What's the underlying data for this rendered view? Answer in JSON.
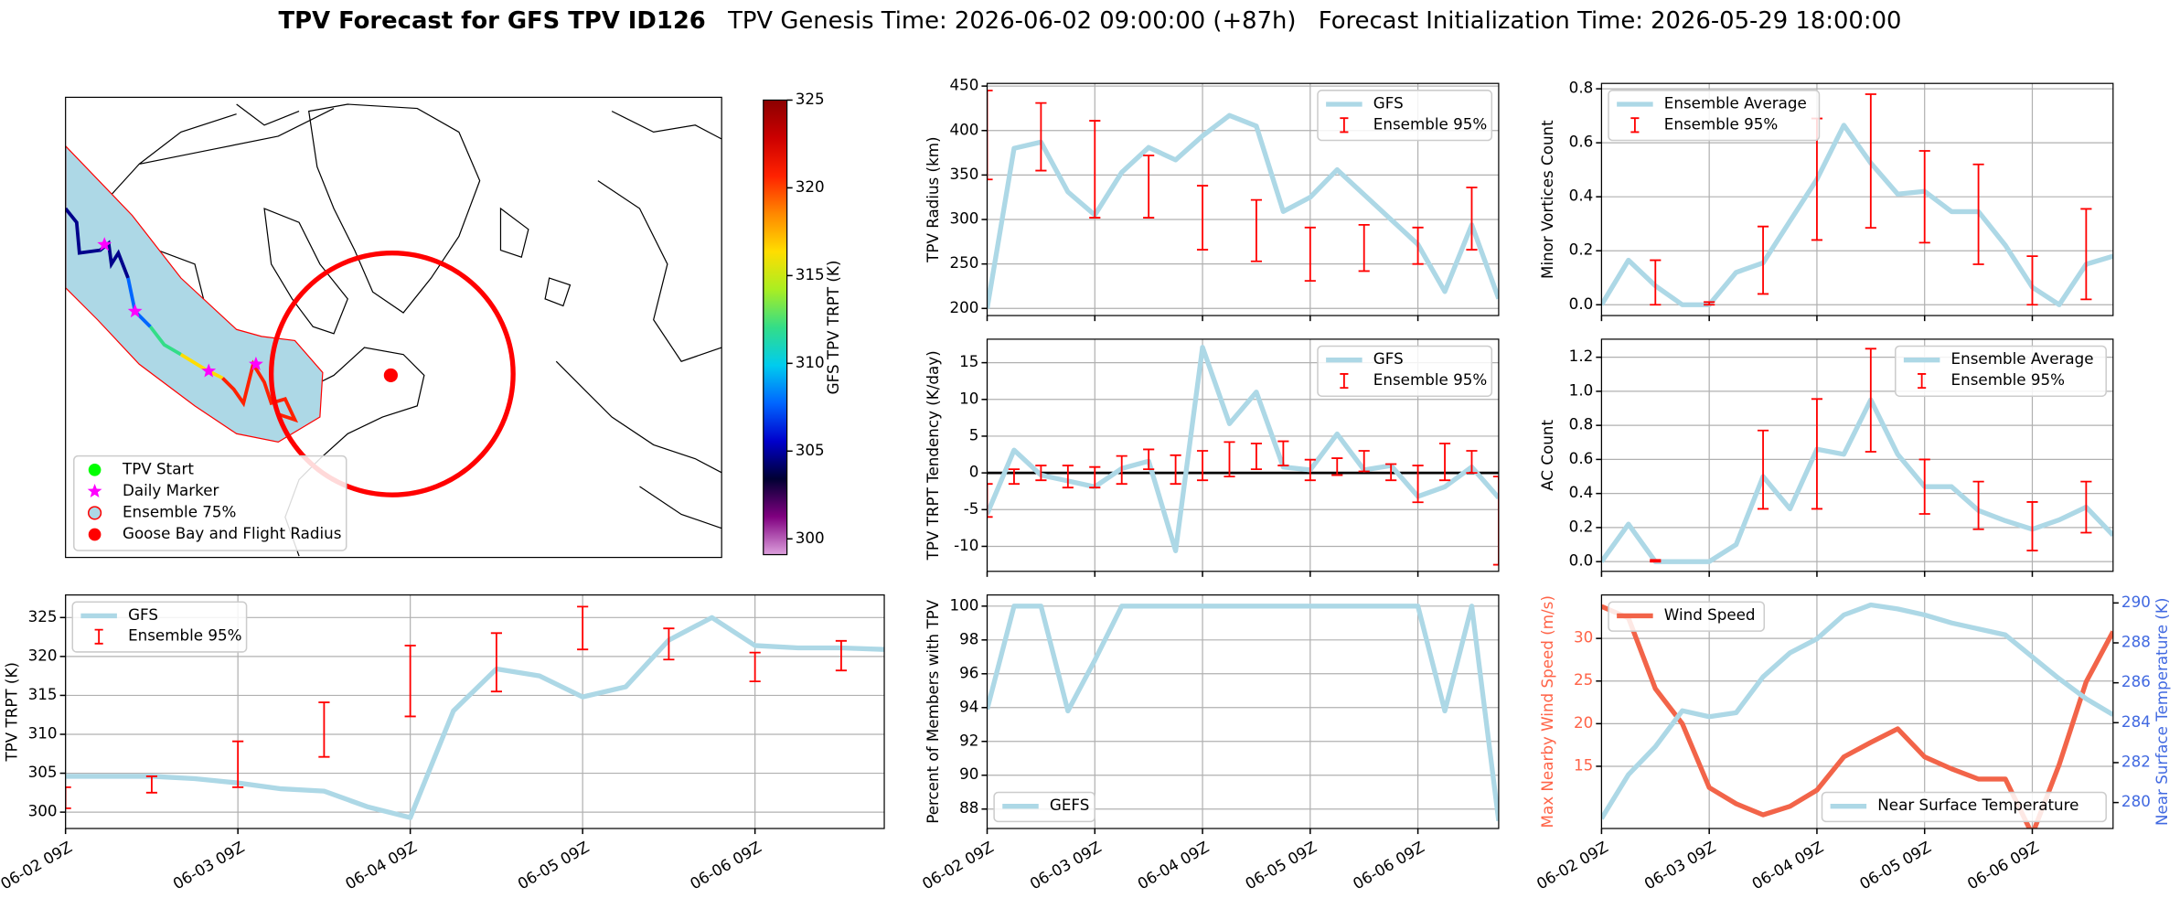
{
  "suptitle": [
    "TPV Forecast for GFS TPV ID126",
    "TPV Genesis Time: 2026-06-02 09:00:00 (+87h)",
    "Forecast Initialization Time: 2026-05-29 18:00:00"
  ],
  "chart_data": [
    {
      "type": "map",
      "legend": {
        "corner": "lower left",
        "entries": [
          {
            "label": "TPV Start",
            "color": "#00ff00",
            "marker": "circle"
          },
          {
            "label": "Daily Marker",
            "color": "#ff00ff",
            "marker": "star"
          },
          {
            "label": "Ensemble 75%",
            "color": "#add8e6",
            "edgecolor": "#ff0000",
            "marker": "circle"
          },
          {
            "label": "Goose Bay and Flight Radius",
            "color": "#ff0000",
            "marker": "circle"
          }
        ]
      },
      "colorbar": {
        "label": "GFS TPV TRPT (K)",
        "lim": [
          299.1,
          325
        ],
        "ticks": [
          300,
          305,
          310,
          315,
          320,
          325
        ],
        "colormap": [
          "#dda0dd",
          "#800080",
          "#000033",
          "#0000cc",
          "#0066ff",
          "#00ccee",
          "#33dd88",
          "#aaee22",
          "#ffdd00",
          "#ff8800",
          "#ff2200",
          "#cc0000",
          "#8b0000"
        ]
      }
    },
    {
      "type": "line",
      "ylabel": "TPV TRPT (K)",
      "x": [
        "06-02 09Z",
        "06-02 15Z",
        "06-02 21Z",
        "06-03 03Z",
        "06-03 09Z",
        "06-03 15Z",
        "06-03 21Z",
        "06-04 03Z",
        "06-04 09Z",
        "06-04 15Z",
        "06-04 21Z",
        "06-05 03Z",
        "06-05 09Z",
        "06-05 15Z",
        "06-05 21Z",
        "06-06 03Z",
        "06-06 09Z",
        "06-06 15Z",
        "06-06 21Z",
        "06-07 03Z"
      ],
      "series": [
        {
          "name": "GFS",
          "color": "#add8e6",
          "values": [
            304.6,
            304.6,
            304.6,
            304.3,
            303.75,
            303.0,
            302.7,
            300.7,
            299.3,
            313.0,
            318.4,
            317.5,
            314.8,
            316.1,
            322.1,
            325.0,
            321.4,
            321.1,
            321.1,
            320.9
          ]
        }
      ],
      "errorbars": {
        "name": "Ensemble 95%",
        "color": "#ff0000",
        "lower": [
          300.5,
          null,
          302.5,
          null,
          303.2,
          null,
          307.1,
          null,
          312.3,
          null,
          315.5,
          null,
          320.9,
          null,
          319.6,
          null,
          316.8,
          null,
          318.2,
          null
        ],
        "upper": [
          303.2,
          null,
          304.6,
          null,
          309.1,
          null,
          314.1,
          null,
          321.4,
          null,
          323.0,
          null,
          326.4,
          null,
          323.6,
          null,
          320.5,
          null,
          322.0,
          null
        ]
      },
      "xlim": [
        "06-02 09Z",
        "06-07 03Z"
      ],
      "xticks": [
        "06-02 09Z",
        "06-03 09Z",
        "06-04 09Z",
        "06-05 09Z",
        "06-06 09Z"
      ],
      "ylim": [
        297.9,
        327.9
      ],
      "yticks": [
        300,
        305,
        310,
        315,
        320,
        325
      ],
      "grid": true,
      "legend": "upper left"
    },
    {
      "type": "line",
      "ylabel": "TPV Radius (km)",
      "x": [
        "06-02 09Z",
        "06-02 15Z",
        "06-02 21Z",
        "06-03 03Z",
        "06-03 09Z",
        "06-03 15Z",
        "06-03 21Z",
        "06-04 03Z",
        "06-04 09Z",
        "06-04 15Z",
        "06-04 21Z",
        "06-05 03Z",
        "06-05 09Z",
        "06-05 15Z",
        "06-05 21Z",
        "06-06 03Z",
        "06-06 09Z",
        "06-06 15Z",
        "06-06 21Z",
        "06-07 03Z"
      ],
      "series": [
        {
          "name": "GFS",
          "color": "#add8e6",
          "values": [
            200,
            380,
            387,
            331,
            305,
            353,
            381,
            367,
            394,
            417,
            405,
            309,
            325,
            356,
            328,
            300,
            272,
            219,
            294,
            211
          ]
        }
      ],
      "errorbars": {
        "name": "Ensemble 95%",
        "color": "#ff0000",
        "lower": [
          345,
          null,
          355,
          null,
          302,
          null,
          302,
          null,
          266,
          null,
          253,
          null,
          231,
          null,
          242,
          null,
          250,
          null,
          266,
          null
        ],
        "upper": [
          445,
          null,
          431,
          null,
          411,
          null,
          372,
          null,
          338,
          null,
          322,
          null,
          291,
          null,
          294,
          null,
          291,
          null,
          336,
          null
        ]
      },
      "ylim": [
        192,
        453
      ],
      "yticks": [
        200,
        250,
        300,
        350,
        400,
        450
      ],
      "grid": true,
      "legend": "upper right"
    },
    {
      "type": "line",
      "ylabel": "TPV TRPT Tendency (K/day)",
      "x": [
        "06-02 09Z",
        "06-02 15Z",
        "06-02 21Z",
        "06-03 03Z",
        "06-03 09Z",
        "06-03 15Z",
        "06-03 21Z",
        "06-04 03Z",
        "06-04 09Z",
        "06-04 15Z",
        "06-04 21Z",
        "06-05 03Z",
        "06-05 09Z",
        "06-05 15Z",
        "06-05 21Z",
        "06-06 03Z",
        "06-06 09Z",
        "06-06 15Z",
        "06-06 21Z",
        "06-07 03Z"
      ],
      "series": [
        {
          "name": "GFS",
          "color": "#add8e6",
          "values": [
            -5.6,
            3.1,
            -0.3,
            -1.1,
            -1.9,
            0.6,
            1.6,
            -10.6,
            17.1,
            6.7,
            11.0,
            0.8,
            0.4,
            5.3,
            0.4,
            1.0,
            -3.2,
            -1.9,
            0.8,
            -3.4
          ]
        }
      ],
      "errorbars": {
        "name": "Ensemble 95%",
        "color": "#ff0000",
        "lower": [
          -6,
          -1.5,
          -1,
          -2,
          -2,
          -1.5,
          0.5,
          -1.5,
          -1,
          -0.5,
          0.5,
          1,
          -1,
          -0.3,
          0.2,
          -1,
          -4,
          -1,
          0,
          -12.5
        ],
        "upper": [
          -1.5,
          0.5,
          1,
          1,
          0.8,
          2.3,
          3.2,
          2.4,
          3,
          4.2,
          4,
          4.3,
          1.8,
          2,
          3,
          1.2,
          1,
          4,
          3,
          -0.5
        ]
      },
      "reference_line": {
        "value": 0,
        "color": "#000000"
      },
      "ylim": [
        -13.4,
        18.2
      ],
      "yticks": [
        -10,
        -5,
        0,
        5,
        10,
        15
      ],
      "grid": true,
      "legend": "upper right"
    },
    {
      "type": "line",
      "ylabel": "Percent of Members with TPV",
      "x": [
        "06-02 09Z",
        "06-02 15Z",
        "06-02 21Z",
        "06-03 03Z",
        "06-03 09Z",
        "06-03 15Z",
        "06-03 21Z",
        "06-04 03Z",
        "06-04 09Z",
        "06-04 15Z",
        "06-04 21Z",
        "06-05 03Z",
        "06-05 09Z",
        "06-05 15Z",
        "06-05 21Z",
        "06-06 03Z",
        "06-06 09Z",
        "06-06 15Z",
        "06-06 21Z",
        "06-07 03Z"
      ],
      "series": [
        {
          "name": "GEFS",
          "color": "#add8e6",
          "values": [
            93.9,
            100,
            100,
            93.8,
            96.8,
            100,
            100,
            100,
            100,
            100,
            100,
            100,
            100,
            100,
            100,
            100,
            100,
            93.8,
            100,
            87.3
          ]
        }
      ],
      "xlim": [
        "06-02 09Z",
        "06-07 03Z"
      ],
      "xticks": [
        "06-02 09Z",
        "06-03 09Z",
        "06-04 09Z",
        "06-05 09Z",
        "06-06 09Z"
      ],
      "ylim": [
        86.85,
        100.66
      ],
      "yticks": [
        88,
        90,
        92,
        94,
        96,
        98,
        100
      ],
      "grid": true,
      "legend": "lower left"
    },
    {
      "type": "line",
      "ylabel": "Minor Vortices Count",
      "x": [
        "06-02 09Z",
        "06-02 15Z",
        "06-02 21Z",
        "06-03 03Z",
        "06-03 09Z",
        "06-03 15Z",
        "06-03 21Z",
        "06-04 03Z",
        "06-04 09Z",
        "06-04 15Z",
        "06-04 21Z",
        "06-05 03Z",
        "06-05 09Z",
        "06-05 15Z",
        "06-05 21Z",
        "06-06 03Z",
        "06-06 09Z",
        "06-06 15Z",
        "06-06 21Z",
        "06-07 03Z"
      ],
      "series": [
        {
          "name": "Ensemble Average",
          "color": "#add8e6",
          "values": [
            0,
            0.165,
            0.07,
            0,
            0,
            0.12,
            0.155,
            0.31,
            0.465,
            0.665,
            0.525,
            0.41,
            0.42,
            0.345,
            0.345,
            0.22,
            0.065,
            0,
            0.15,
            0.18
          ]
        }
      ],
      "errorbars": {
        "name": "Ensemble 95%",
        "color": "#ff0000",
        "lower": [
          null,
          null,
          0,
          null,
          0,
          null,
          0.04,
          null,
          0.24,
          null,
          0.285,
          null,
          0.23,
          null,
          0.15,
          null,
          0,
          null,
          0.02,
          null
        ],
        "upper": [
          null,
          null,
          0.165,
          null,
          0.01,
          null,
          0.29,
          null,
          0.69,
          null,
          0.78,
          null,
          0.57,
          null,
          0.52,
          null,
          0.18,
          null,
          0.355,
          null
        ]
      },
      "ylim": [
        -0.04,
        0.82
      ],
      "yticks": [
        {
          "value": 0,
          "label": "0.0"
        },
        0.2,
        0.4,
        0.6,
        0.8
      ],
      "grid": true,
      "legend": "upper left"
    },
    {
      "type": "line",
      "ylabel": "AC Count",
      "x": [
        "06-02 09Z",
        "06-02 15Z",
        "06-02 21Z",
        "06-03 03Z",
        "06-03 09Z",
        "06-03 15Z",
        "06-03 21Z",
        "06-04 03Z",
        "06-04 09Z",
        "06-04 15Z",
        "06-04 21Z",
        "06-05 03Z",
        "06-05 09Z",
        "06-05 15Z",
        "06-05 21Z",
        "06-06 03Z",
        "06-06 09Z",
        "06-06 15Z",
        "06-06 21Z",
        "06-07 03Z"
      ],
      "series": [
        {
          "name": "Ensemble Average",
          "color": "#add8e6",
          "values": [
            0,
            0.22,
            0,
            0,
            0,
            0.1,
            0.5,
            0.31,
            0.66,
            0.63,
            0.95,
            0.63,
            0.44,
            0.44,
            0.3,
            0.24,
            0.19,
            0.245,
            0.32,
            0.155
          ]
        }
      ],
      "errorbars": {
        "name": "Ensemble 95%",
        "color": "#ff0000",
        "lower": [
          null,
          null,
          0,
          null,
          null,
          null,
          0.31,
          null,
          0.31,
          null,
          0.645,
          null,
          0.28,
          null,
          0.19,
          null,
          0.065,
          null,
          0.17,
          null
        ],
        "upper": [
          null,
          null,
          0.01,
          null,
          null,
          null,
          0.77,
          null,
          0.955,
          null,
          1.25,
          null,
          0.6,
          null,
          0.47,
          null,
          0.35,
          null,
          0.47,
          null
        ]
      },
      "ylim": [
        -0.057,
        1.306
      ],
      "yticks": [
        {
          "value": 0,
          "label": "0.0"
        },
        0.2,
        0.4,
        0.6,
        0.8,
        {
          "value": 1,
          "label": "1.0"
        },
        1.2
      ],
      "grid": true,
      "legend": "upper right"
    },
    {
      "type": "line",
      "ylabel": "Max Nearby Wind Speed (m/s)",
      "y2label": "Near Surface Temperature (K)",
      "ylabel_color": "#ff6347",
      "y2label_color": "#4169e1",
      "x": [
        "06-02 09Z",
        "06-02 15Z",
        "06-02 21Z",
        "06-03 03Z",
        "06-03 09Z",
        "06-03 15Z",
        "06-03 21Z",
        "06-04 03Z",
        "06-04 09Z",
        "06-04 15Z",
        "06-04 21Z",
        "06-05 03Z",
        "06-05 09Z",
        "06-05 15Z",
        "06-05 21Z",
        "06-06 03Z",
        "06-06 09Z",
        "06-06 15Z",
        "06-06 21Z",
        "06-07 03Z"
      ],
      "series": [
        {
          "name": "Wind Speed",
          "color": "#f26449",
          "legend": "upper left",
          "values": [
            33.75,
            32.4,
            24.1,
            20.0,
            12.5,
            10.6,
            9.3,
            10.3,
            12.2,
            16.1,
            17.8,
            19.4,
            16.1,
            14.7,
            13.5,
            13.5,
            7.0,
            15.2,
            24.9,
            30.8
          ]
        },
        {
          "name": "Near Surface Temperature",
          "color": "#add8e6",
          "axis": "y2",
          "legend": "lower right",
          "values": [
            279.2,
            281.4,
            282.8,
            284.6,
            284.3,
            284.5,
            286.3,
            287.5,
            288.2,
            289.4,
            289.9,
            289.7,
            289.4,
            289.0,
            288.7,
            288.4,
            287.3,
            286.2,
            285.2,
            284.4
          ]
        }
      ],
      "xlim": [
        "06-02 09Z",
        "06-07 03Z"
      ],
      "xticks": [
        "06-02 09Z",
        "06-03 09Z",
        "06-04 09Z",
        "06-05 09Z",
        "06-06 09Z"
      ],
      "ylim": [
        7.7,
        35.1
      ],
      "yticks": [
        15,
        20,
        25,
        30
      ],
      "y2lim": [
        278.7,
        290.4
      ],
      "y2ticks": [
        280,
        282,
        284,
        286,
        288,
        290
      ],
      "grid": true
    }
  ]
}
